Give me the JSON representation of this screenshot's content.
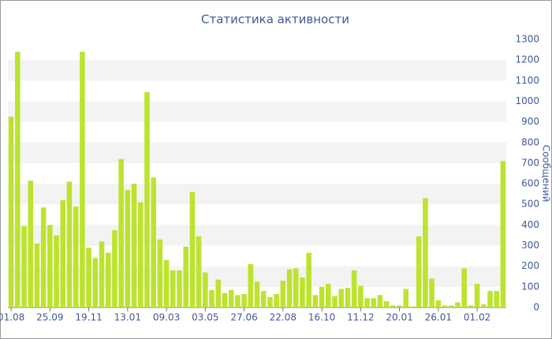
{
  "chart_data": {
    "type": "bar",
    "title": "Статистика активности",
    "y_axis_label": "Сообщений",
    "categories": [
      "01.08",
      null,
      null,
      null,
      null,
      null,
      "25.09",
      null,
      null,
      null,
      null,
      null,
      "19.11",
      null,
      null,
      null,
      null,
      null,
      "13.01",
      null,
      null,
      null,
      null,
      null,
      "09.03",
      null,
      null,
      null,
      null,
      null,
      "03.05",
      null,
      null,
      null,
      null,
      null,
      "27.06",
      null,
      null,
      null,
      null,
      null,
      "22.08",
      null,
      null,
      null,
      null,
      null,
      "16.10",
      null,
      null,
      null,
      null,
      null,
      "11.12",
      null,
      null,
      null,
      null,
      null,
      "20.01",
      null,
      null,
      null,
      null,
      null,
      "26.01",
      null,
      null,
      null,
      null,
      null,
      "01.02",
      null,
      null,
      null,
      null
    ],
    "values": [
      925,
      1240,
      395,
      615,
      310,
      485,
      400,
      350,
      520,
      610,
      490,
      1240,
      290,
      240,
      320,
      265,
      375,
      720,
      570,
      600,
      510,
      1045,
      630,
      330,
      230,
      180,
      180,
      295,
      560,
      345,
      170,
      85,
      135,
      70,
      85,
      60,
      65,
      210,
      125,
      80,
      50,
      65,
      130,
      185,
      190,
      145,
      265,
      60,
      100,
      115,
      55,
      90,
      95,
      180,
      105,
      45,
      45,
      60,
      30,
      10,
      10,
      90,
      5,
      345,
      530,
      140,
      35,
      10,
      10,
      25,
      190,
      10,
      115,
      15,
      80,
      80,
      710
    ],
    "color": "#bde32f",
    "ylim": [
      0,
      1300
    ],
    "yticks": [
      0,
      100,
      200,
      300,
      400,
      500,
      600,
      700,
      800,
      900,
      1000,
      1100,
      1200,
      1300
    ],
    "grid_bands": true
  }
}
